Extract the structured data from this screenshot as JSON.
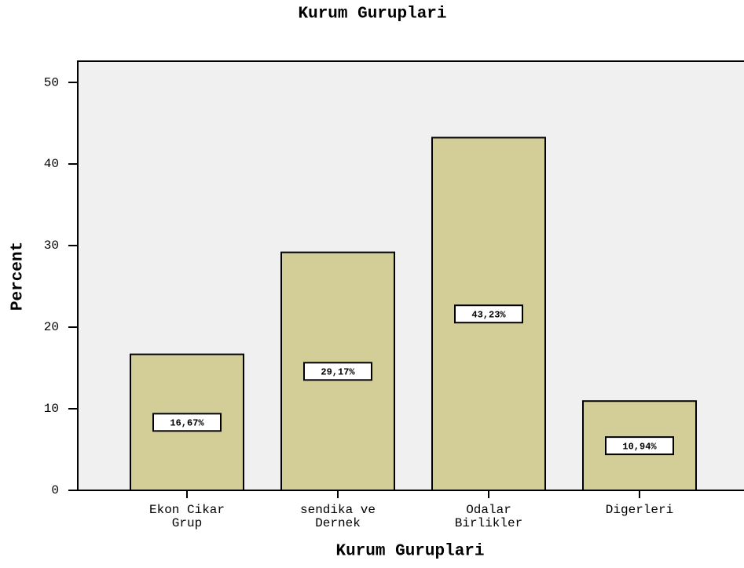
{
  "chart_data": {
    "type": "bar",
    "title": "Kurum Guruplari",
    "x_label": "Kurum Guruplari",
    "y_label": "Percent",
    "categories": [
      [
        "Ekon Cikar",
        "Grup"
      ],
      [
        "sendika ve",
        "Dernek"
      ],
      [
        "Odalar",
        "Birlikler"
      ],
      [
        "Digerleri"
      ]
    ],
    "values": [
      16.67,
      29.17,
      43.23,
      10.94
    ],
    "value_labels": [
      "16,67%",
      "29,17%",
      "43,23%",
      "10,94%"
    ],
    "color": "#d3cd98",
    "ylim": [
      0,
      52.6
    ],
    "yticks": [
      0,
      10,
      20,
      30,
      40,
      50
    ],
    "grid": false
  }
}
